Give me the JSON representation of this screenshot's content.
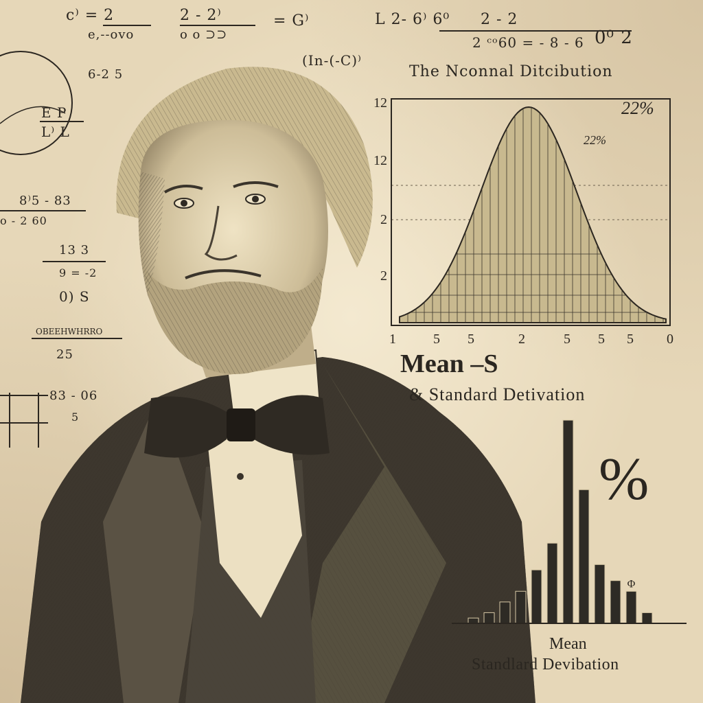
{
  "header_scribbles": {
    "s1": "c⁾ = 2",
    "s1b": "e,--ovo",
    "s2": "2 - 2⁾",
    "s2b": "o o ⊃⊃",
    "s3": "= G⁾",
    "s4": "L  2- 6⁾  6⁰",
    "s5": "2 - 2",
    "s5b": "2 ᶜᵒ60 = - 8 - 6",
    "s6": "0⁰  2",
    "s7": "(In-(-C)⁾",
    "s8": "6-2 5",
    "s9": "E P",
    "s10": "L⁾ L",
    "s11": "8⁾5 - 83",
    "s12": "o - 2  60",
    "s13": "13 3",
    "s14": "9 = -2",
    "s15": "0)  S",
    "s16": "OBEEHWHRRO",
    "s17": "25",
    "s18": "83 - 06",
    "s19": "5"
  },
  "main_title": "The Nconnal Ditcibution",
  "legend": {
    "mean": "Mean –S",
    "sd": "& Standard Detivation"
  },
  "percent_symbol": "%",
  "caption": {
    "mean": "Mean",
    "sd": "Standlard Devibation"
  },
  "chart_data": [
    {
      "type": "area",
      "title": "The Nconnal Ditcibution",
      "y_tick_labels": [
        "12",
        "12",
        "2",
        "2"
      ],
      "x_tick_labels": [
        "1",
        "5",
        "5",
        "2",
        "5",
        "5",
        "5",
        "0"
      ],
      "annotations": [
        "22%",
        "22%"
      ],
      "grid": true
    },
    {
      "type": "bar",
      "values": [
        1,
        2,
        4,
        6,
        10,
        15,
        38,
        25,
        11,
        8,
        6,
        2
      ],
      "annotations": [
        "Φ"
      ],
      "xlabel": "Mean",
      "secondary_label": "Standlard Devibation"
    }
  ],
  "colors": {
    "paper": "#e6d7b8",
    "ink": "#2b2620",
    "curve_fill": "#c8b98f",
    "bar_fill": "#2e2b25"
  }
}
